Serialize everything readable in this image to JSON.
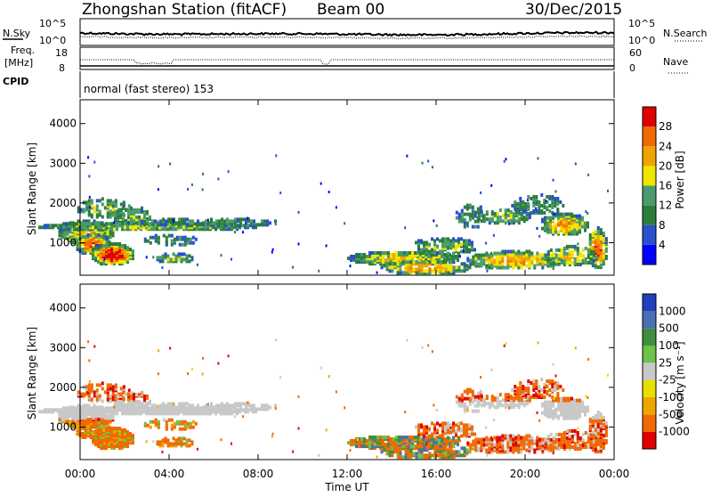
{
  "header": {
    "station": "Zhongshan Station (fitACF)",
    "beam": "Beam 00",
    "date": "30/Dec/2015"
  },
  "strip": {
    "nsky_label": "N.Sky",
    "nsky_ticks": [
      "10^5",
      "10^0"
    ],
    "nsearch_ticks": [
      "10^5",
      "10^0"
    ],
    "nsearch_label": "N.Search",
    "freq_label_1": "Freq.",
    "freq_label_2": "[MHz]",
    "freq_ticks": [
      "18",
      "8"
    ],
    "nave_ticks": [
      "60",
      "0"
    ],
    "nave_label": "Nave",
    "cpid_label": "CPID",
    "cpid_text": "normal (fast stereo) 153"
  },
  "xaxis": {
    "ticks": [
      "00:00",
      "04:00",
      "08:00",
      "12:00",
      "16:00",
      "20:00",
      "00:00"
    ],
    "label": "Time UT"
  },
  "panels": {
    "power": {
      "ylabel": "Slant Range [km]",
      "yticks": [
        "4000",
        "3000",
        "2000",
        "1000"
      ],
      "cbar_label": "Power [dB]"
    },
    "velocity": {
      "ylabel": "Slant Range [km]",
      "yticks": [
        "4000",
        "3000",
        "2000",
        "1000"
      ],
      "cbar_label": "Velocity [m s⁻¹]"
    }
  },
  "colors": {
    "power_scale": [
      "#0000ff",
      "#2a4fcf",
      "#2b7d3c",
      "#4b9b6a",
      "#f0e600",
      "#f0a400",
      "#f06a00",
      "#e00000"
    ],
    "velocity_scale": [
      "#e00000",
      "#f06a00",
      "#f0a400",
      "#e8e000",
      "#c8c8c8",
      "#6cc24a",
      "#3f8f3f",
      "#4a6fb5",
      "#1f3fbf"
    ]
  },
  "chart_data": [
    {
      "type": "heatmap",
      "title": "Power",
      "x": [
        "00:00",
        "04:00",
        "08:00",
        "12:00",
        "16:00",
        "20:00",
        "00:00"
      ],
      "ylabel": "Slant Range [km]",
      "ylim": [
        180,
        4600
      ],
      "colorbar": {
        "label": "Power [dB]",
        "ticks": [
          "4",
          "8",
          "12",
          "16",
          "20",
          "24",
          "28"
        ],
        "range": [
          0,
          32
        ]
      }
    },
    {
      "type": "heatmap",
      "title": "Velocity",
      "x": [
        "00:00",
        "04:00",
        "08:00",
        "12:00",
        "16:00",
        "20:00",
        "00:00"
      ],
      "ylabel": "Slant Range [km]",
      "ylim": [
        180,
        4600
      ],
      "colorbar": {
        "label": "Velocity [m s⁻¹]",
        "ticks": [
          "1000",
          "500",
          "100",
          "25",
          "-25",
          "-100",
          "-500",
          "-1000"
        ]
      }
    }
  ]
}
